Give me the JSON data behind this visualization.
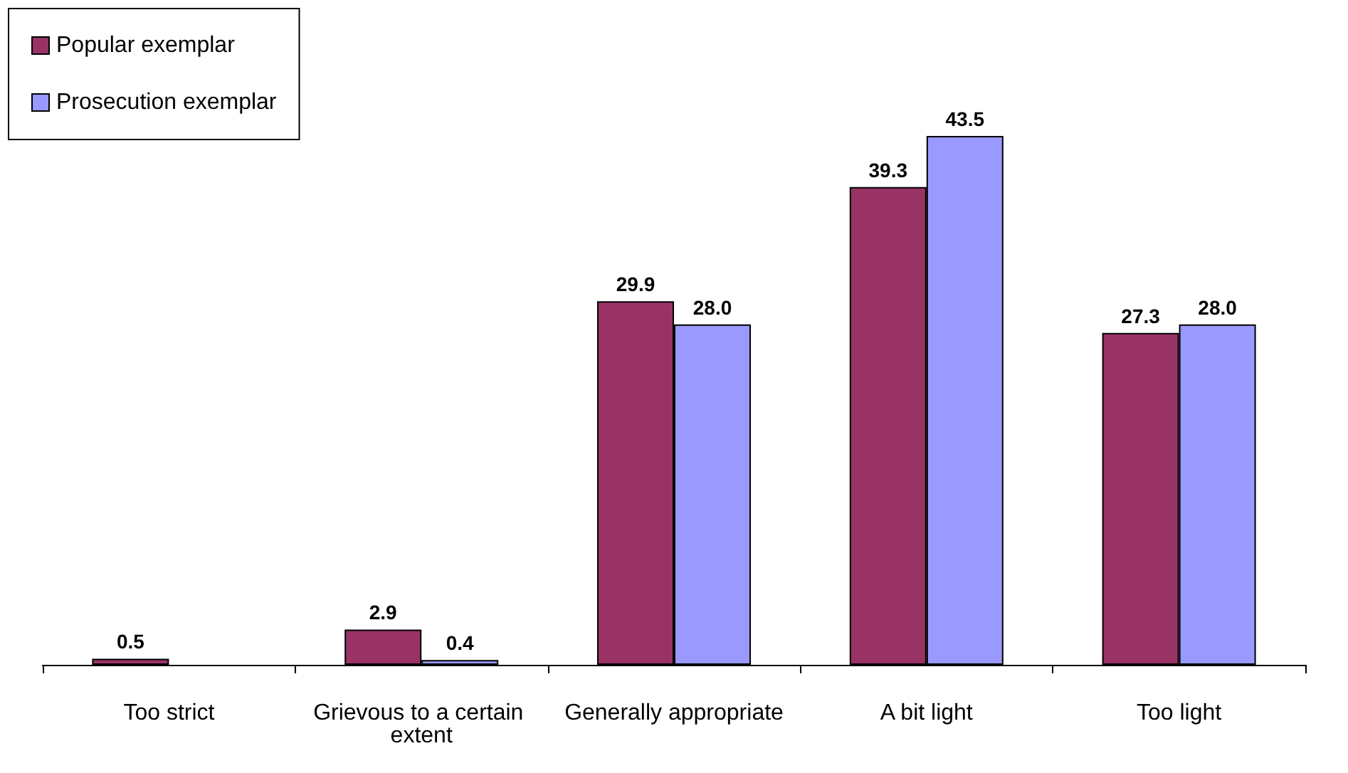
{
  "chart_data": {
    "type": "bar",
    "categories": [
      "Too strict",
      "Grievous to a certain extent",
      "Generally appropriate",
      "A bit light",
      "Too light"
    ],
    "series": [
      {
        "name": "Popular exemplar",
        "color": "#993366",
        "values": [
          0.5,
          2.9,
          29.9,
          39.3,
          27.3
        ],
        "value_labels": [
          "0.5",
          "2.9",
          "29.9",
          "39.3",
          "27.3"
        ]
      },
      {
        "name": "Prosecution exemplar",
        "color": "#9999ff",
        "values": [
          null,
          0.4,
          28.0,
          43.5,
          28.0
        ],
        "value_labels": [
          null,
          "0.4",
          "28.0",
          "43.5",
          "28.0"
        ]
      }
    ],
    "legend": "top left",
    "grid": false
  }
}
